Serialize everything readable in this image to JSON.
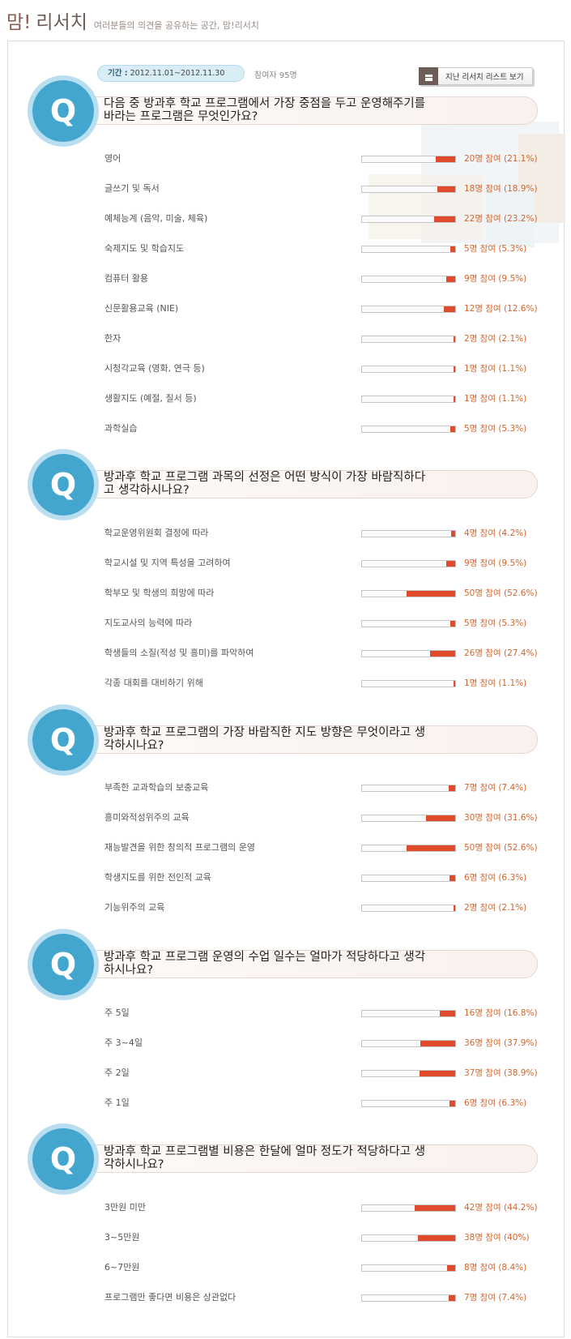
{
  "header": {
    "brand_mom": "맘!",
    "brand_research": "리서치",
    "description": "여러분들의 의견을 공유하는 공간, 맘!리서치"
  },
  "survey_info": {
    "period_label": "기간 :",
    "period_value": "2012.11.01~2012.11.30",
    "participants": "참여자 95명",
    "past_list_button": "지난 리서치 리스트 보기"
  },
  "colors": {
    "q_circle": "#43a6cf",
    "bar_fill": "#e04b2c",
    "result_text": "#d2662e"
  },
  "questions": [
    {
      "line1": "다음 중 방과후 학교 프로그램에서 가장 중점을 두고 운영해주기를",
      "line2": "바라는 프로그램은 무엇인가요?",
      "options": [
        {
          "label": "영어",
          "result": "20명 참여 (21.1%)",
          "percent": 21.1
        },
        {
          "label": "글쓰기 및 독서",
          "result": "18명 참여 (18.9%)",
          "percent": 18.9
        },
        {
          "label": "예체능계 (음악, 미술, 체육)",
          "result": "22명 참여 (23.2%)",
          "percent": 23.2
        },
        {
          "label": "숙제지도 및 학습지도",
          "result": "5명 참여 (5.3%)",
          "percent": 5.3
        },
        {
          "label": "컴퓨터 활용",
          "result": "9명 참여 (9.5%)",
          "percent": 9.5
        },
        {
          "label": "신문활용교육 (NIE)",
          "result": "12명 참여 (12.6%)",
          "percent": 12.6
        },
        {
          "label": "한자",
          "result": "2명 참여 (2.1%)",
          "percent": 2.1
        },
        {
          "label": "시청각교육 (영화, 연극 등)",
          "result": "1명 참여 (1.1%)",
          "percent": 1.1
        },
        {
          "label": "생활지도 (예절, 질서 등)",
          "result": "1명 참여 (1.1%)",
          "percent": 1.1
        },
        {
          "label": "과학실습",
          "result": "5명 참여 (5.3%)",
          "percent": 5.3
        }
      ]
    },
    {
      "line1": "방과후 학교 프로그램 과목의 선정은 어떤 방식이 가장 바람직하다",
      "line2": "고 생각하시나요?",
      "options": [
        {
          "label": "학교운영위원회 결정에 따라",
          "result": "4명 참여 (4.2%)",
          "percent": 4.2
        },
        {
          "label": "학교시설 및 지역 특성을 고려하여",
          "result": "9명 참여 (9.5%)",
          "percent": 9.5
        },
        {
          "label": "학부모 및 학생의 희망에 따라",
          "result": "50명 참여 (52.6%)",
          "percent": 52.6
        },
        {
          "label": "지도교사의 능력에 따라",
          "result": "5명 참여 (5.3%)",
          "percent": 5.3
        },
        {
          "label": "학생들의 소질(적성 및 흥미)를 파악하여",
          "result": "26명 참여 (27.4%)",
          "percent": 27.4
        },
        {
          "label": "각종 대회를 대비하기 위해",
          "result": "1명 참여 (1.1%)",
          "percent": 1.1
        }
      ]
    },
    {
      "line1": "방과후 학교 프로그램의 가장 바람직한 지도 방향은 무엇이라고 생",
      "line2": "각하시나요?",
      "options": [
        {
          "label": "부족한 교과학습의 보충교육",
          "result": "7명 참여 (7.4%)",
          "percent": 7.4
        },
        {
          "label": "흥미와적성위주의 교육",
          "result": "30명 참여 (31.6%)",
          "percent": 31.6
        },
        {
          "label": "재능발견을 위한 창의적 프로그램의 운영",
          "result": "50명 참여 (52.6%)",
          "percent": 52.6
        },
        {
          "label": "학생지도를 위한 전인적 교육",
          "result": "6명 참여 (6.3%)",
          "percent": 6.3
        },
        {
          "label": "기능위주의 교육",
          "result": "2명 참여 (2.1%)",
          "percent": 2.1
        }
      ]
    },
    {
      "line1": "방과후 학교 프로그램 운영의 수업 일수는 얼마가 적당하다고 생각",
      "line2": "하시나요?",
      "options": [
        {
          "label": "주 5일",
          "result": "16명 참여 (16.8%)",
          "percent": 16.8
        },
        {
          "label": "주 3~4일",
          "result": "36명 참여 (37.9%)",
          "percent": 37.9
        },
        {
          "label": "주 2일",
          "result": "37명 참여 (38.9%)",
          "percent": 38.9
        },
        {
          "label": "주 1일",
          "result": "6명 참여 (6.3%)",
          "percent": 6.3
        }
      ]
    },
    {
      "line1": "방과후 학교 프로그램별 비용은 한달에 얼마 정도가 적당하다고 생",
      "line2": "각하시나요?",
      "options": [
        {
          "label": "3만원 미만",
          "result": "42명 참여 (44.2%)",
          "percent": 44.2
        },
        {
          "label": "3~5만원",
          "result": "38명 참여 (40%)",
          "percent": 40
        },
        {
          "label": "6~7만원",
          "result": "8명 참여 (8.4%)",
          "percent": 8.4
        },
        {
          "label": "프로그램만 좋다면 비용은 상관없다",
          "result": "7명 참여 (7.4%)",
          "percent": 7.4
        }
      ]
    }
  ]
}
